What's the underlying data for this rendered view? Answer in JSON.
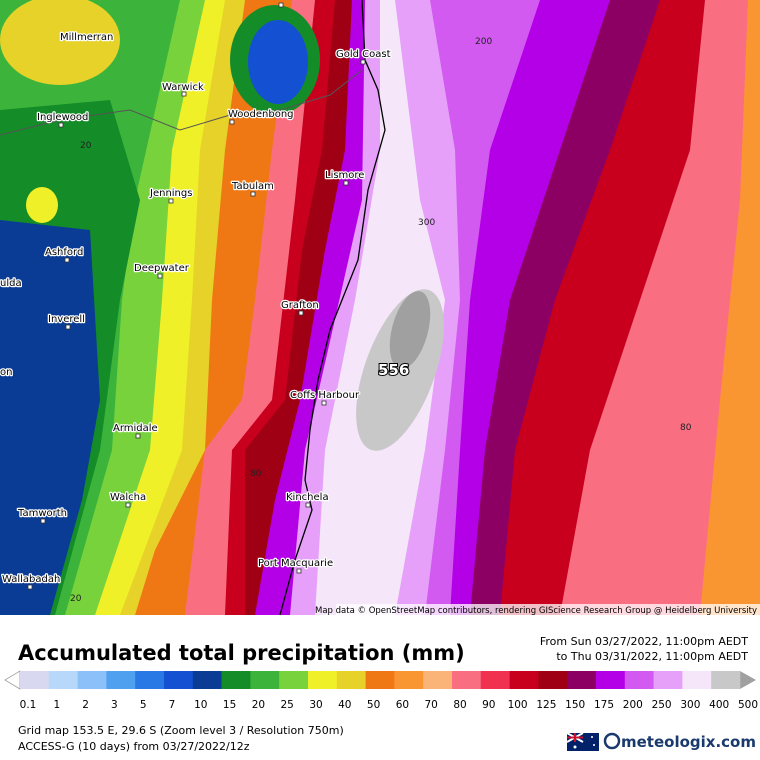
{
  "map": {
    "towns": [
      "Millmerran",
      "Warwick",
      "Woodenbong",
      "Inglewood",
      "Gold Coast",
      "Lismore",
      "Jennings",
      "Tabulam",
      "Ashford",
      "Deepwater",
      "Grafton",
      "Inverell",
      "Coffs Harbour",
      "Armidale",
      "Walcha",
      "Kinchela",
      "Tamworth",
      "Port Macquarie",
      "Wallabadah",
      "ulda",
      "on"
    ],
    "contour_labels": [
      "200",
      "20",
      "300",
      "556",
      "80",
      "80",
      "20"
    ],
    "attribution": "Map data © OpenStreetMap contributors, rendering GIScience Research Group @ Heidelberg University"
  },
  "header": {
    "title": "Accumulated total precipitation (mm)",
    "period": [
      "From Sun 03/27/2022, 11:00pm AEDT",
      "to Thu 03/31/2022, 11:00pm AEDT"
    ]
  },
  "legend": {
    "labels": [
      "0.1",
      "1",
      "2",
      "3",
      "5",
      "7",
      "10",
      "15",
      "20",
      "25",
      "30",
      "40",
      "50",
      "60",
      "70",
      "80",
      "90",
      "100",
      "125",
      "150",
      "175",
      "200",
      "250",
      "300",
      "400",
      "500"
    ],
    "colors": [
      "#d8d8f0",
      "#b8d8fa",
      "#8cc0f8",
      "#50a0f0",
      "#2878e6",
      "#1450d2",
      "#0a3c96",
      "#148c28",
      "#3cb43c",
      "#78d23c",
      "#f0f028",
      "#e6d228",
      "#f07814",
      "#fa9632",
      "#fab478",
      "#fa6e82",
      "#f03250",
      "#c8001e",
      "#a00014",
      "#8c0064",
      "#b400e6",
      "#d25af0",
      "#e6a0fa",
      "#f5e6fa",
      "#c8c8c8"
    ]
  },
  "footer": {
    "grid": "Grid map 153.5 E, 29.6 S (Zoom level 3 / Resolution 750m)",
    "model": "ACCESS-G (10 days) from 03/27/2022/12z",
    "brand": "meteologix.com"
  }
}
